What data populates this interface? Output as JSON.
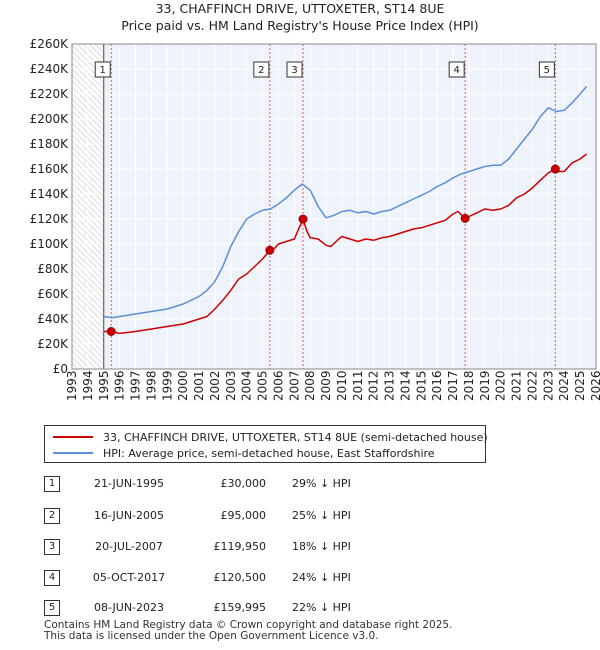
{
  "chart_data": {
    "type": "line",
    "title": "33, CHAFFINCH DRIVE, UTTOXETER, ST14 8UE",
    "subtitle": "Price paid vs. HM Land Registry's House Price Index (HPI)",
    "xlim": [
      1993,
      2026
    ],
    "ylim": [
      0,
      260000
    ],
    "x_ticks": [
      "1993",
      "1994",
      "1995",
      "1996",
      "1997",
      "1998",
      "1999",
      "2000",
      "2001",
      "2002",
      "2003",
      "2004",
      "2005",
      "2006",
      "2007",
      "2008",
      "2009",
      "2010",
      "2011",
      "2012",
      "2013",
      "2014",
      "2015",
      "2016",
      "2017",
      "2018",
      "2019",
      "2020",
      "2021",
      "2022",
      "2023",
      "2024",
      "2025",
      "2026"
    ],
    "y_ticks": [
      {
        "value": 0,
        "label": "£0"
      },
      {
        "value": 20000,
        "label": "£20K"
      },
      {
        "value": 40000,
        "label": "£40K"
      },
      {
        "value": 60000,
        "label": "£60K"
      },
      {
        "value": 80000,
        "label": "£80K"
      },
      {
        "value": 100000,
        "label": "£100K"
      },
      {
        "value": 120000,
        "label": "£120K"
      },
      {
        "value": 140000,
        "label": "£140K"
      },
      {
        "value": 160000,
        "label": "£160K"
      },
      {
        "value": 180000,
        "label": "£180K"
      },
      {
        "value": 200000,
        "label": "£200K"
      },
      {
        "value": 220000,
        "label": "£220K"
      },
      {
        "value": 240000,
        "label": "£240K"
      },
      {
        "value": 260000,
        "label": "£260K"
      }
    ],
    "data_start_year": 1995,
    "series": [
      {
        "name": "33, CHAFFINCH DRIVE, UTTOXETER, ST14 8UE (semi-detached house)",
        "color": "#cc0000",
        "x": [
          1995.0,
          1995.47,
          1996.0,
          1997.0,
          1998.0,
          1999.0,
          2000.0,
          2001.0,
          2001.5,
          2002.0,
          2002.5,
          2003.0,
          2003.5,
          2004.0,
          2004.5,
          2005.0,
          2005.46,
          2005.8,
          2006.0,
          2006.5,
          2007.0,
          2007.55,
          2007.8,
          2008.0,
          2008.5,
          2009.0,
          2009.3,
          2009.8,
          2010.0,
          2010.5,
          2011.0,
          2011.5,
          2012.0,
          2012.5,
          2013.0,
          2013.5,
          2014.0,
          2014.5,
          2015.0,
          2015.5,
          2016.0,
          2016.5,
          2017.0,
          2017.3,
          2017.76,
          2018.0,
          2018.5,
          2019.0,
          2019.5,
          2020.0,
          2020.5,
          2021.0,
          2021.5,
          2022.0,
          2022.5,
          2023.0,
          2023.44,
          2023.6,
          2024.0,
          2024.5,
          2025.0,
          2025.4
        ],
        "values": [
          30000,
          30000,
          28500,
          30000,
          32000,
          34000,
          36000,
          40000,
          42000,
          48000,
          55000,
          63000,
          72000,
          76000,
          82000,
          88000,
          95000,
          97000,
          100000,
          102000,
          104000,
          119950,
          110000,
          105000,
          104000,
          99000,
          98000,
          104000,
          106000,
          104000,
          102000,
          104000,
          103000,
          105000,
          106000,
          108000,
          110000,
          112000,
          113000,
          115000,
          117000,
          119000,
          124000,
          126000,
          120500,
          122000,
          125000,
          128000,
          127000,
          128000,
          131000,
          137000,
          140000,
          145000,
          151000,
          157000,
          159995,
          158000,
          158000,
          165000,
          168000,
          172000
        ]
      },
      {
        "name": "HPI: Average price, semi-detached house, East Staffordshire",
        "color": "#5b8fd6",
        "x": [
          1995.0,
          1995.5,
          1996.0,
          1996.5,
          1997.0,
          1997.5,
          1998.0,
          1998.5,
          1999.0,
          1999.5,
          2000.0,
          2000.5,
          2001.0,
          2001.5,
          2002.0,
          2002.5,
          2003.0,
          2003.5,
          2004.0,
          2004.5,
          2005.0,
          2005.5,
          2006.0,
          2006.5,
          2007.0,
          2007.5,
          2008.0,
          2008.5,
          2009.0,
          2009.5,
          2010.0,
          2010.5,
          2011.0,
          2011.5,
          2012.0,
          2012.5,
          2013.0,
          2013.5,
          2014.0,
          2014.5,
          2015.0,
          2015.5,
          2016.0,
          2016.5,
          2017.0,
          2017.5,
          2018.0,
          2018.5,
          2019.0,
          2019.5,
          2020.0,
          2020.5,
          2021.0,
          2021.5,
          2022.0,
          2022.5,
          2023.0,
          2023.5,
          2024.0,
          2024.5,
          2025.0,
          2025.4
        ],
        "values": [
          42000,
          41000,
          42000,
          43000,
          44000,
          45000,
          46000,
          47000,
          48000,
          50000,
          52000,
          55000,
          58000,
          63000,
          70000,
          82000,
          98000,
          110000,
          120000,
          124000,
          127000,
          128000,
          132000,
          137000,
          143000,
          148000,
          143000,
          130000,
          121000,
          123000,
          126000,
          127000,
          125000,
          126000,
          124000,
          126000,
          127000,
          130000,
          133000,
          136000,
          139000,
          142000,
          146000,
          149000,
          153000,
          156000,
          158000,
          160000,
          162000,
          163000,
          163000,
          168000,
          176000,
          184000,
          192000,
          202000,
          209000,
          206000,
          207000,
          213000,
          220000,
          226000
        ]
      }
    ],
    "sales": [
      {
        "n": "1",
        "x": 1995.47,
        "value": 30000
      },
      {
        "n": "2",
        "x": 2005.46,
        "value": 95000
      },
      {
        "n": "3",
        "x": 2007.55,
        "value": 119950
      },
      {
        "n": "4",
        "x": 2017.76,
        "value": 120500
      },
      {
        "n": "5",
        "x": 2023.44,
        "value": 159995
      }
    ]
  },
  "legend": [
    {
      "label": "33, CHAFFINCH DRIVE, UTTOXETER, ST14 8UE (semi-detached house)",
      "color": "#cc0000"
    },
    {
      "label": "HPI: Average price, semi-detached house, East Staffordshire",
      "color": "#5b8fd6"
    }
  ],
  "sales_table": [
    {
      "n": "1",
      "date": "21-JUN-1995",
      "price": "£30,000",
      "hpi": "29% ↓ HPI"
    },
    {
      "n": "2",
      "date": "16-JUN-2005",
      "price": "£95,000",
      "hpi": "25% ↓ HPI"
    },
    {
      "n": "3",
      "date": "20-JUL-2007",
      "price": "£119,950",
      "hpi": "18% ↓ HPI"
    },
    {
      "n": "4",
      "date": "05-OCT-2017",
      "price": "£120,500",
      "hpi": "24% ↓ HPI"
    },
    {
      "n": "5",
      "date": "08-JUN-2023",
      "price": "£159,995",
      "hpi": "22% ↓ HPI"
    }
  ],
  "footer": {
    "line1": "Contains HM Land Registry data © Crown copyright and database right 2025.",
    "line2": "This data is licensed under the Open Government Licence v3.0."
  }
}
